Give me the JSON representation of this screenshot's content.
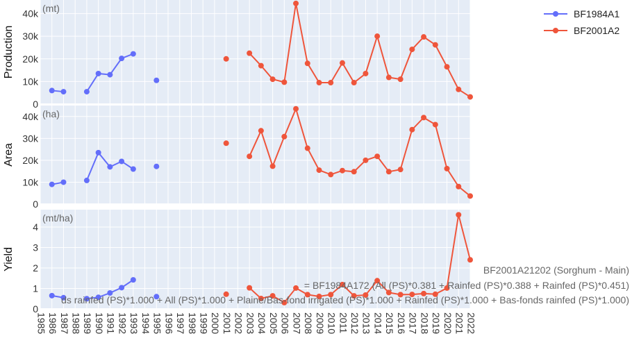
{
  "chart_data": {
    "type": "line",
    "x": [
      1986,
      1987,
      1988,
      1989,
      1990,
      1991,
      1992,
      1993,
      1994,
      1995,
      1996,
      1997,
      1998,
      1999,
      2000,
      2001,
      2002,
      2003,
      2004,
      2005,
      2006,
      2007,
      2008,
      2009,
      2010,
      2011,
      2012,
      2013,
      2014,
      2015,
      2016,
      2017,
      2018,
      2019,
      2020,
      2021,
      2022
    ],
    "x_ticks": [
      "1985",
      "1986",
      "1987",
      "1988",
      "1989",
      "1990",
      "1991",
      "1992",
      "1993",
      "1994",
      "1995",
      "1996",
      "1997",
      "1998",
      "1999",
      "2000",
      "2001",
      "2002",
      "2003",
      "2004",
      "2005",
      "2006",
      "2007",
      "2008",
      "2009",
      "2010",
      "2011",
      "2012",
      "2013",
      "2014",
      "2015",
      "2016",
      "2017",
      "2018",
      "2019",
      "2020",
      "2021",
      "2022"
    ],
    "xlim": [
      1985,
      2022
    ],
    "series_colors": {
      "BF1984A1": "#636efa",
      "BF2001A2": "#ef553b"
    },
    "legend": [
      "BF1984A1",
      "BF2001A2"
    ],
    "legend_position": "top-right",
    "panels": [
      {
        "ylabel": "Production",
        "unit": "(mt)",
        "ylim": [
          0,
          46000
        ],
        "ticks": [
          0,
          10000,
          20000,
          30000,
          40000
        ],
        "tick_labels": [
          "0",
          "10k",
          "20k",
          "30k",
          "40k"
        ],
        "series": [
          {
            "name": "BF1984A1",
            "values": [
              6000,
              5500,
              null,
              5500,
              13500,
              13000,
              20200,
              22200,
              null,
              10500,
              null,
              null,
              null,
              null,
              null,
              null,
              null,
              null,
              null,
              null,
              null,
              null,
              null,
              null,
              null,
              null,
              null,
              null,
              null,
              null,
              null,
              null,
              null,
              null,
              null,
              null,
              null
            ]
          },
          {
            "name": "BF2001A2",
            "values": [
              null,
              null,
              null,
              null,
              null,
              null,
              null,
              null,
              null,
              null,
              null,
              null,
              null,
              null,
              null,
              20000,
              null,
              22500,
              17000,
              11000,
              9700,
              44500,
              18000,
              9500,
              9500,
              18200,
              9500,
              13500,
              30000,
              11800,
              11000,
              24200,
              29700,
              26200,
              16500,
              6500,
              3200
            ]
          }
        ]
      },
      {
        "ylabel": "Area",
        "unit": "(ha)",
        "ylim": [
          0,
          45000
        ],
        "ticks": [
          0,
          10000,
          20000,
          30000,
          40000
        ],
        "tick_labels": [
          "0",
          "10k",
          "20k",
          "30k",
          "40k"
        ],
        "series": [
          {
            "name": "BF1984A1",
            "values": [
              9000,
              10000,
              null,
              10800,
              23500,
              17000,
              19500,
              16000,
              null,
              17200,
              null,
              null,
              null,
              null,
              null,
              null,
              null,
              null,
              null,
              null,
              null,
              null,
              null,
              null,
              null,
              null,
              null,
              null,
              null,
              null,
              null,
              null,
              null,
              null,
              null,
              null,
              null
            ]
          },
          {
            "name": "BF2001A2",
            "values": [
              null,
              null,
              null,
              null,
              null,
              null,
              null,
              null,
              null,
              null,
              null,
              null,
              null,
              null,
              null,
              27800,
              null,
              21800,
              33500,
              17300,
              30800,
              43500,
              25500,
              15500,
              13500,
              15300,
              14800,
              20000,
              21800,
              14800,
              15800,
              34000,
              39500,
              36300,
              16200,
              8000,
              3700
            ]
          }
        ]
      },
      {
        "ylabel": "Yield",
        "unit": "(mt/ha)",
        "ylim": [
          0,
          4.85
        ],
        "ticks": [
          0,
          1,
          2,
          3,
          4
        ],
        "tick_labels": [
          "0",
          "1",
          "2",
          "3",
          "4"
        ],
        "series": [
          {
            "name": "BF1984A1",
            "values": [
              0.65,
              0.55,
              null,
              0.5,
              0.57,
              0.78,
              1.04,
              1.42,
              null,
              0.6,
              null,
              null,
              null,
              null,
              null,
              null,
              null,
              null,
              null,
              null,
              null,
              null,
              null,
              null,
              null,
              null,
              null,
              null,
              null,
              null,
              null,
              null,
              null,
              null,
              null,
              null,
              null
            ]
          },
          {
            "name": "BF2001A2",
            "values": [
              null,
              null,
              null,
              null,
              null,
              null,
              null,
              null,
              null,
              null,
              null,
              null,
              null,
              null,
              null,
              0.72,
              null,
              1.03,
              0.51,
              0.64,
              0.31,
              1.02,
              0.7,
              0.61,
              0.7,
              1.19,
              0.64,
              0.68,
              1.38,
              0.8,
              0.7,
              0.71,
              0.75,
              0.72,
              1.02,
              4.6,
              2.4
            ]
          }
        ]
      }
    ],
    "annotations": [
      "BF2001A21202 (Sorghum - Main)",
      "= BF1984A172 (All (PS)*0.381 + Rainfed (PS)*0.388 + Rainfed (PS)*0.451)",
      "ds rainfed (PS)*1.000 + All (PS)*1.000 + Plaine/Bas-fond irrigated (PS)*1.000 + Rainfed (PS)*1.000 + Bas-fonds rainfed (PS)*1.000)"
    ]
  }
}
